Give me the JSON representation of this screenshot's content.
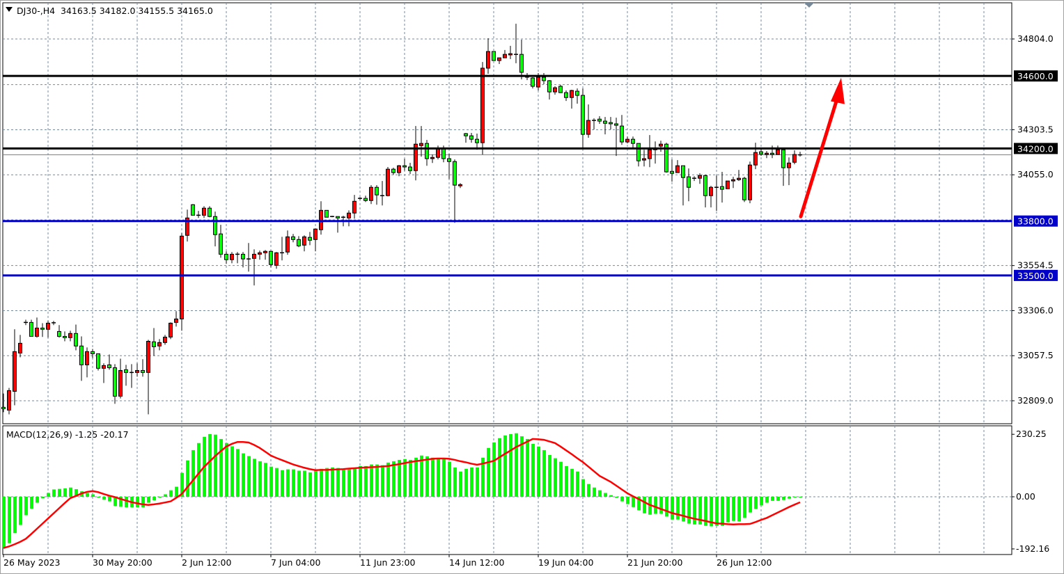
{
  "header": {
    "symbol": "DJ30-,H4",
    "open": "34163.5",
    "high": "34182.0",
    "low": "34155.5",
    "close": "34165.0",
    "menu_icon": "triangle-down-icon"
  },
  "colors": {
    "bull": "#ff0000",
    "bear": "#00ff00",
    "support_line": "#0000c8",
    "resistance_line": "#000000",
    "signal": "#ff0000",
    "histogram": "#00ff00",
    "arrow": "#ff0000",
    "grid": "#778899"
  },
  "chart_data": [
    {
      "type": "candlestick",
      "timeframe": "H4",
      "ylim": [
        32740,
        34890
      ],
      "grid": true,
      "y_ticks": [
        "34804.0",
        "34303.5",
        "34055.0",
        "33554.5",
        "33306.0",
        "33057.5",
        "32809.0"
      ],
      "x_tick_labels": [
        "26 May 2023",
        "30 May 20:00",
        "2 Jun 12:00",
        "7 Jun 04:00",
        "11 Jun 23:00",
        "14 Jun 12:00",
        "19 Jun 04:00",
        "21 Jun 20:00",
        "26 Jun 12:00"
      ],
      "current_price": 34165.0,
      "horizontal_lines": [
        {
          "price": 34600.0,
          "label": "34600.0",
          "color": "#000000"
        },
        {
          "price": 34200.0,
          "label": "34200.0",
          "color": "#000000"
        },
        {
          "price": 33800.0,
          "label": "33800.0",
          "color": "#0000c8"
        },
        {
          "price": 33500.0,
          "label": "33500.0",
          "color": "#0000c8"
        }
      ],
      "annotation": {
        "type": "arrow",
        "direction": "up",
        "from_price": 33825,
        "to_price": 34560,
        "color": "#ff0000"
      },
      "ohlc": [
        [
          32773,
          32849,
          32746,
          32765
        ],
        [
          32757,
          32880,
          32734,
          32865
        ],
        [
          32861,
          33203,
          32784,
          33080
        ],
        [
          33072,
          33172,
          33049,
          33126
        ],
        [
          33241,
          33256,
          33226,
          33237
        ],
        [
          33241,
          33256,
          33164,
          33164
        ],
        [
          33164,
          33268,
          33157,
          33210
        ],
        [
          33210,
          33237,
          33161,
          33203
        ],
        [
          33203,
          33249,
          33157,
          33237
        ],
        [
          33237,
          33249,
          33226,
          33239
        ],
        [
          33191,
          33226,
          33157,
          33164
        ],
        [
          33164,
          33191,
          33137,
          33157
        ],
        [
          33157,
          33195,
          33137,
          33180
        ],
        [
          33180,
          33229,
          33087,
          33111
        ],
        [
          33111,
          33164,
          32919,
          33007
        ],
        [
          33007,
          33103,
          32938,
          33080
        ],
        [
          33080,
          33095,
          33045,
          33068
        ],
        [
          33068,
          33068,
          32976,
          32988
        ],
        [
          32988,
          33015,
          32907,
          33003
        ],
        [
          33007,
          33064,
          32980,
          32991
        ],
        [
          32991,
          33011,
          32792,
          32834
        ],
        [
          32834,
          33041,
          32822,
          32976
        ],
        [
          32980,
          33007,
          32892,
          32965
        ],
        [
          32965,
          33011,
          32880,
          32964
        ],
        [
          32965,
          33015,
          32942,
          32976
        ],
        [
          32976,
          33038,
          32942,
          32965
        ],
        [
          32965,
          33145,
          32734,
          33137
        ],
        [
          33134,
          33210,
          33057,
          33107
        ],
        [
          33111,
          33149,
          33087,
          33130
        ],
        [
          33130,
          33172,
          33118,
          33160
        ],
        [
          33160,
          33241,
          33149,
          33237
        ],
        [
          33241,
          33303,
          33218,
          33260
        ],
        [
          33260,
          33733,
          33195,
          33717
        ],
        [
          33721,
          33863,
          33687,
          33817
        ],
        [
          33890,
          33894,
          33829,
          33832
        ],
        [
          33832,
          33856,
          33817,
          33831
        ],
        [
          33832,
          33882,
          33817,
          33871
        ],
        [
          33871,
          33882,
          33821,
          33825
        ],
        [
          33825,
          33852,
          33660,
          33725
        ],
        [
          33729,
          33779,
          33598,
          33617
        ],
        [
          33617,
          33633,
          33564,
          33587
        ],
        [
          33587,
          33629,
          33567,
          33617
        ],
        [
          33617,
          33629,
          33567,
          33616
        ],
        [
          33617,
          33629,
          33544,
          33591
        ],
        [
          33591,
          33679,
          33521,
          33590
        ],
        [
          33594,
          33644,
          33445,
          33617
        ],
        [
          33617,
          33637,
          33587,
          33625
        ],
        [
          33625,
          33640,
          33587,
          33633
        ],
        [
          33633,
          33637,
          33544,
          33560
        ],
        [
          33556,
          33629,
          33537,
          33625
        ],
        [
          33625,
          33713,
          33583,
          33624
        ],
        [
          33629,
          33748,
          33614,
          33713
        ],
        [
          33713,
          33729,
          33683,
          33698
        ],
        [
          33698,
          33717,
          33656,
          33663
        ],
        [
          33667,
          33721,
          33633,
          33713
        ],
        [
          33710,
          33740,
          33667,
          33694
        ],
        [
          33698,
          33759,
          33633,
          33756
        ],
        [
          33752,
          33909,
          33725,
          33859
        ],
        [
          33859,
          33859,
          33821,
          33821
        ],
        [
          33825,
          33829,
          33821,
          33824
        ],
        [
          33825,
          33825,
          33736,
          33817
        ],
        [
          33821,
          33829,
          33771,
          33820
        ],
        [
          33817,
          33859,
          33771,
          33844
        ],
        [
          33844,
          33944,
          33813,
          33909
        ],
        [
          33925,
          33932,
          33917,
          33924
        ],
        [
          33925,
          33940,
          33905,
          33913
        ],
        [
          33913,
          33998,
          33894,
          33986
        ],
        [
          33986,
          33998,
          33890,
          33944
        ],
        [
          33940,
          34021,
          33886,
          33939
        ],
        [
          33940,
          34098,
          33936,
          34086
        ],
        [
          34086,
          34094,
          34055,
          34067
        ],
        [
          34067,
          34109,
          34047,
          34105
        ],
        [
          34105,
          34143,
          34078,
          34098
        ],
        [
          34098,
          34121,
          34059,
          34078
        ],
        [
          34078,
          34324,
          34024,
          34224
        ],
        [
          34216,
          34324,
          34155,
          34228
        ],
        [
          34228,
          34247,
          34105,
          34144
        ],
        [
          34144,
          34167,
          34120,
          34151
        ],
        [
          34151,
          34216,
          34140,
          34201
        ],
        [
          34201,
          34216,
          34124,
          34144
        ],
        [
          34144,
          34170,
          34032,
          34128
        ],
        [
          34128,
          34140,
          33790,
          33998
        ],
        [
          33994,
          34009,
          33982,
          34001
        ],
        [
          34282,
          34286,
          34232,
          34270
        ],
        [
          34270,
          34286,
          34232,
          34251
        ],
        [
          34251,
          34282,
          34193,
          34232
        ],
        [
          34232,
          34677,
          34167,
          34643
        ],
        [
          34643,
          34808,
          34612,
          34735
        ],
        [
          34735,
          34735,
          34685,
          34685
        ],
        [
          34685,
          34700,
          34666,
          34700
        ],
        [
          34700,
          34743,
          34700,
          34719
        ],
        [
          34716,
          34766,
          34693,
          34723
        ],
        [
          34719,
          34888,
          34670,
          34718
        ],
        [
          34719,
          34800,
          34581,
          34620
        ],
        [
          34600,
          34616,
          34577,
          34593
        ],
        [
          34589,
          34593,
          34531,
          34543
        ],
        [
          34539,
          34616,
          34520,
          34593
        ],
        [
          34593,
          34616,
          34554,
          34574
        ],
        [
          34574,
          34577,
          34470,
          34512
        ],
        [
          34512,
          34543,
          34497,
          34535
        ],
        [
          34543,
          34551,
          34508,
          34508
        ],
        [
          34508,
          34520,
          34462,
          34481
        ],
        [
          34481,
          34524,
          34420,
          34520
        ],
        [
          34516,
          34531,
          34447,
          34493
        ],
        [
          34493,
          34531,
          34205,
          34278
        ],
        [
          34278,
          34443,
          34259,
          34355
        ],
        [
          34355,
          34366,
          34305,
          34354
        ],
        [
          34362,
          34378,
          34336,
          34351
        ],
        [
          34351,
          34374,
          34278,
          34339
        ],
        [
          34343,
          34374,
          34305,
          34336
        ],
        [
          34336,
          34370,
          34159,
          34328
        ],
        [
          34324,
          34385,
          34220,
          34236
        ],
        [
          34236,
          34266,
          34228,
          34251
        ],
        [
          34251,
          34266,
          34197,
          34228
        ],
        [
          34228,
          34228,
          34101,
          34132
        ],
        [
          34136,
          34193,
          34101,
          34144
        ],
        [
          34144,
          34274,
          34097,
          34193
        ],
        [
          34193,
          34239,
          34117,
          34201
        ],
        [
          34213,
          34243,
          34182,
          34224
        ],
        [
          34224,
          34232,
          34067,
          34071
        ],
        [
          34074,
          34140,
          34017,
          34063
        ],
        [
          34067,
          34136,
          34067,
          34105
        ],
        [
          34105,
          34105,
          33886,
          34040
        ],
        [
          34044,
          34090,
          33909,
          33986
        ],
        [
          34036,
          34047,
          34021,
          34035
        ],
        [
          34036,
          34063,
          34005,
          34051
        ],
        [
          34051,
          34055,
          33875,
          33940
        ],
        [
          33940,
          33994,
          33875,
          33986
        ],
        [
          33986,
          34051,
          33856,
          33985
        ],
        [
          33990,
          34071,
          33902,
          33975
        ],
        [
          33978,
          34021,
          33978,
          34021
        ],
        [
          34021,
          34044,
          33982,
          34028
        ],
        [
          34028,
          34082,
          34021,
          34036
        ],
        [
          34036,
          34044,
          33905,
          33917
        ],
        [
          33917,
          34128,
          33898,
          34109
        ],
        [
          34109,
          34232,
          34086,
          34178
        ],
        [
          34182,
          34205,
          34159,
          34170
        ],
        [
          34167,
          34186,
          34147,
          34174
        ],
        [
          34174,
          34216,
          34147,
          34167
        ],
        [
          34167,
          34216,
          34167,
          34193
        ],
        [
          34193,
          34193,
          33994,
          34094
        ],
        [
          34094,
          34151,
          33998,
          34120
        ],
        [
          34124,
          34190,
          34113,
          34167
        ],
        [
          34163.5,
          34182.0,
          34155.5,
          34165.0
        ]
      ]
    },
    {
      "type": "bar+line",
      "title": "MACD(12,26,9)",
      "macd_value": "-1.25",
      "signal_value": "-20.17",
      "ylim": [
        -192.16,
        230.25
      ],
      "y_ticks": [
        "230.25",
        "0.00",
        "-192.16"
      ],
      "histogram": [
        -188,
        -171,
        -134,
        -104,
        -68,
        -44,
        -22,
        -6,
        14,
        27,
        29,
        31,
        34,
        28,
        20,
        14,
        9,
        -3,
        -11,
        -17,
        -34,
        -37,
        -39,
        -39,
        -39,
        -39,
        -22,
        -13,
        -3,
        9,
        24,
        37,
        88,
        134,
        172,
        198,
        221,
        231,
        229,
        213,
        198,
        186,
        176,
        160,
        150,
        140,
        131,
        125,
        111,
        106,
        98,
        101,
        101,
        96,
        96,
        90,
        96,
        103,
        106,
        108,
        106,
        101,
        101,
        108,
        113,
        113,
        119,
        119,
        116,
        126,
        131,
        136,
        139,
        136,
        144,
        152,
        149,
        144,
        139,
        139,
        129,
        108,
        93,
        103,
        108,
        108,
        144,
        180,
        200,
        216,
        226,
        231,
        234,
        223,
        213,
        195,
        185,
        172,
        154,
        142,
        129,
        113,
        103,
        93,
        65,
        47,
        34,
        24,
        14,
        6,
        -4,
        -17,
        -27,
        -38,
        -50,
        -61,
        -66,
        -63,
        -63,
        -73,
        -84,
        -84,
        -91,
        -99,
        -102,
        -102,
        -107,
        -109,
        -107,
        -107,
        -94,
        -89,
        -91,
        -78,
        -58,
        -45,
        -32,
        -22,
        -15,
        -15,
        -12,
        -7,
        -2,
        -1.25
      ],
      "signal": [
        -189,
        -183,
        -175,
        -166,
        -155,
        -137,
        -118,
        -99,
        -80,
        -61,
        -42,
        -23,
        -5,
        3,
        12,
        18,
        21,
        17,
        10,
        4,
        -1,
        -8,
        -14,
        -20,
        -24,
        -28,
        -30,
        -28,
        -25,
        -21,
        -17,
        -4,
        10,
        35,
        60,
        85,
        110,
        130,
        150,
        168,
        185,
        195,
        202,
        202,
        200,
        191,
        180,
        166,
        152,
        143,
        135,
        127,
        119,
        113,
        107,
        102,
        98,
        99,
        99,
        100,
        101,
        102,
        104,
        105,
        107,
        108,
        109,
        110,
        112,
        113,
        117,
        120,
        124,
        128,
        131,
        134,
        137,
        140,
        141,
        141,
        140,
        136,
        131,
        127,
        122,
        118,
        122,
        127,
        132,
        145,
        158,
        170,
        183,
        193,
        203,
        213,
        212,
        210,
        204,
        198,
        185,
        171,
        157,
        142,
        128,
        111,
        94,
        77,
        66,
        55,
        41,
        27,
        13,
        2,
        -8,
        -19,
        -30,
        -37,
        -45,
        -52,
        -60,
        -65,
        -70,
        -76,
        -81,
        -85,
        -89,
        -94,
        -98,
        -99,
        -101,
        -102,
        -101,
        -101,
        -100,
        -93,
        -85,
        -78,
        -68,
        -58,
        -48,
        -38,
        -29,
        -20.17
      ]
    }
  ]
}
